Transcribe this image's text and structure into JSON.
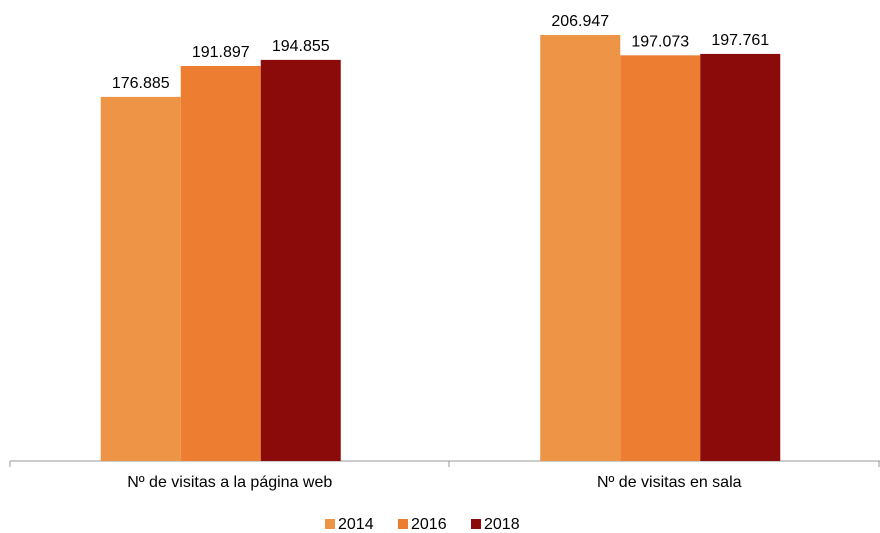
{
  "chart_data": {
    "type": "bar",
    "categories": [
      "Nº de visitas a la página web",
      "Nº de visitas en sala"
    ],
    "series": [
      {
        "name": "2014",
        "color": "#ed9447",
        "values": [
          176885,
          206947
        ],
        "value_labels": [
          "176.885",
          "206.947"
        ]
      },
      {
        "name": "2016",
        "color": "#ed7d31",
        "values": [
          191897,
          197073
        ],
        "value_labels": [
          "191.897",
          "197.073"
        ]
      },
      {
        "name": "2018",
        "color": "#8b0a0a",
        "values": [
          194855,
          197761
        ],
        "value_labels": [
          "194.855",
          "197.761"
        ]
      }
    ],
    "legend": "bottom"
  }
}
